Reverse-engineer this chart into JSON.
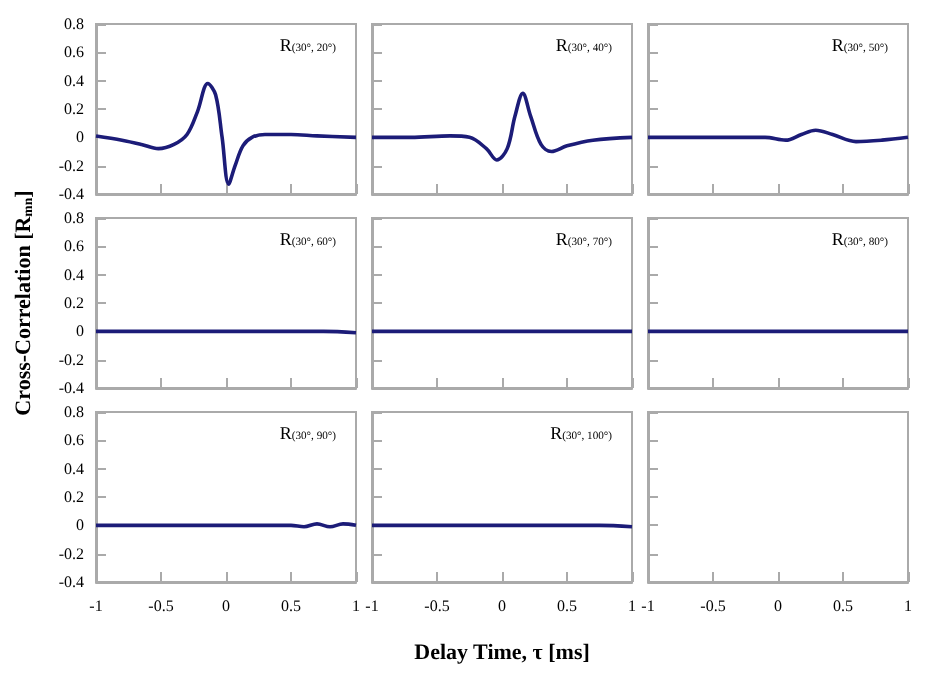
{
  "chart_data": [
    {
      "type": "line",
      "annotations": [
        "R$_{(30°, 20°)}$"
      ],
      "color": "#1c1c78",
      "tick_labels": "y",
      "xlim": [
        -1,
        1
      ],
      "xticks": [
        -1,
        -0.5,
        0,
        0.5,
        1
      ],
      "ylim": [
        -0.4,
        0.8
      ],
      "yticks": [
        -0.4,
        -0.2,
        0,
        0.2,
        0.4,
        0.6,
        0.8
      ],
      "x": [
        -1,
        -0.8,
        -0.65,
        -0.52,
        -0.4,
        -0.3,
        -0.22,
        -0.14,
        -0.08,
        -0.03,
        0.02,
        0.07,
        0.13,
        0.2,
        0.3,
        0.5,
        0.7,
        1
      ],
      "values": [
        0.01,
        -0.02,
        -0.05,
        -0.08,
        -0.05,
        0.02,
        0.18,
        0.38,
        0.3,
        0.0,
        -0.33,
        -0.2,
        -0.06,
        0.0,
        0.02,
        0.02,
        0.01,
        0.0
      ]
    },
    {
      "type": "line",
      "annotations": [
        "R$_{(30°, 40°)}$"
      ],
      "color": "#1c1c78",
      "tick_labels": false,
      "xlim": [
        -1,
        1
      ],
      "xticks": [
        -1,
        -0.5,
        0,
        0.5,
        1
      ],
      "ylim": [
        -0.4,
        0.8
      ],
      "yticks": [
        -0.4,
        -0.2,
        0,
        0.2,
        0.4,
        0.6,
        0.8
      ],
      "x": [
        -1,
        -0.7,
        -0.4,
        -0.25,
        -0.12,
        -0.04,
        0.04,
        0.1,
        0.16,
        0.22,
        0.3,
        0.38,
        0.5,
        0.7,
        1
      ],
      "values": [
        0.0,
        0.0,
        0.01,
        0.0,
        -0.08,
        -0.16,
        -0.08,
        0.15,
        0.31,
        0.15,
        -0.05,
        -0.1,
        -0.06,
        -0.02,
        0.0
      ]
    },
    {
      "type": "line",
      "annotations": [
        "R$_{(30°, 50°)}$"
      ],
      "color": "#1c1c78",
      "tick_labels": false,
      "xlim": [
        -1,
        1
      ],
      "xticks": [
        -1,
        -0.5,
        0,
        0.5,
        1
      ],
      "ylim": [
        -0.4,
        0.8
      ],
      "yticks": [
        -0.4,
        -0.2,
        0,
        0.2,
        0.4,
        0.6,
        0.8
      ],
      "x": [
        -1,
        -0.6,
        -0.3,
        -0.1,
        0.06,
        0.18,
        0.29,
        0.42,
        0.6,
        0.8,
        1
      ],
      "values": [
        0.0,
        0.0,
        0.0,
        0.0,
        -0.02,
        0.02,
        0.05,
        0.02,
        -0.03,
        -0.02,
        0.0
      ]
    },
    {
      "type": "line",
      "annotations": [
        "R$_{(30°, 60°)}$"
      ],
      "ylabel": "Cross-Correlation [R$_{mn}$]",
      "color": "#1c1c78",
      "tick_labels": "y",
      "xlim": [
        -1,
        1
      ],
      "xticks": [
        -1,
        -0.5,
        0,
        0.5,
        1
      ],
      "ylim": [
        -0.4,
        0.8
      ],
      "yticks": [
        -0.4,
        -0.2,
        0,
        0.2,
        0.4,
        0.6,
        0.8
      ],
      "x": [
        -1,
        -0.75,
        -0.5,
        -0.25,
        0,
        0.25,
        0.5,
        0.75,
        1
      ],
      "values": [
        0.0,
        0.0,
        0.0,
        0.0,
        0.0,
        0.0,
        0.0,
        0.0,
        -0.01
      ]
    },
    {
      "type": "line",
      "annotations": [
        "R$_{(30°, 70°)}$"
      ],
      "color": "#1c1c78",
      "tick_labels": false,
      "xlim": [
        -1,
        1
      ],
      "xticks": [
        -1,
        -0.5,
        0,
        0.5,
        1
      ],
      "ylim": [
        -0.4,
        0.8
      ],
      "yticks": [
        -0.4,
        -0.2,
        0,
        0.2,
        0.4,
        0.6,
        0.8
      ],
      "x": [
        -1,
        -0.75,
        -0.5,
        -0.25,
        0,
        0.25,
        0.5,
        0.75,
        1
      ],
      "values": [
        0.0,
        0.0,
        0.0,
        0.0,
        0.0,
        0.0,
        0.0,
        0.0,
        0.0
      ]
    },
    {
      "type": "line",
      "annotations": [
        "R$_{(30°, 80°)}$"
      ],
      "color": "#1c1c78",
      "tick_labels": false,
      "xlim": [
        -1,
        1
      ],
      "xticks": [
        -1,
        -0.5,
        0,
        0.5,
        1
      ],
      "ylim": [
        -0.4,
        0.8
      ],
      "yticks": [
        -0.4,
        -0.2,
        0,
        0.2,
        0.4,
        0.6,
        0.8
      ],
      "x": [
        -1,
        -0.75,
        -0.5,
        -0.25,
        0,
        0.25,
        0.5,
        0.75,
        1
      ],
      "values": [
        0.0,
        0.0,
        0.0,
        0.0,
        0.0,
        0.0,
        0.0,
        0.0,
        0.0
      ]
    },
    {
      "type": "line",
      "annotations": [
        "R$_{(30°, 90°)}$"
      ],
      "color": "#1c1c78",
      "xlim": [
        -1,
        1
      ],
      "xticks": [
        -1,
        -0.5,
        0,
        0.5,
        1
      ],
      "ylim": [
        -0.4,
        0.8
      ],
      "yticks": [
        -0.4,
        -0.2,
        0,
        0.2,
        0.4,
        0.6,
        0.8
      ],
      "x": [
        -1,
        -0.75,
        -0.5,
        -0.25,
        0,
        0.25,
        0.5,
        0.6,
        0.7,
        0.8,
        0.9,
        1
      ],
      "values": [
        0.0,
        0.0,
        0.0,
        0.0,
        0.0,
        0.0,
        0.0,
        -0.01,
        0.01,
        -0.01,
        0.01,
        0.0
      ]
    },
    {
      "type": "line",
      "annotations": [
        "R$_{(30°, 100°)}$"
      ],
      "xlabel": "Delay Time, τ [ms]",
      "color": "#1c1c78",
      "tick_labels": "x",
      "xlim": [
        -1,
        1
      ],
      "xticks": [
        -1,
        -0.5,
        0,
        0.5,
        1
      ],
      "ylim": [
        -0.4,
        0.8
      ],
      "yticks": [
        -0.4,
        -0.2,
        0,
        0.2,
        0.4,
        0.6,
        0.8
      ],
      "x": [
        -1,
        -0.75,
        -0.5,
        -0.25,
        0,
        0.25,
        0.5,
        0.75,
        1
      ],
      "values": [
        0.0,
        0.0,
        0.0,
        0.0,
        0.0,
        0.0,
        0.0,
        0.0,
        -0.01
      ]
    },
    {
      "type": "line",
      "tick_labels": "x",
      "xlim": [
        -1,
        1
      ],
      "xticks": [
        -1,
        -0.5,
        0,
        0.5,
        1
      ],
      "ylim": [
        -0.4,
        0.8
      ],
      "yticks": [
        -0.4,
        -0.2,
        0,
        0.2,
        0.4,
        0.6,
        0.8
      ]
    }
  ]
}
